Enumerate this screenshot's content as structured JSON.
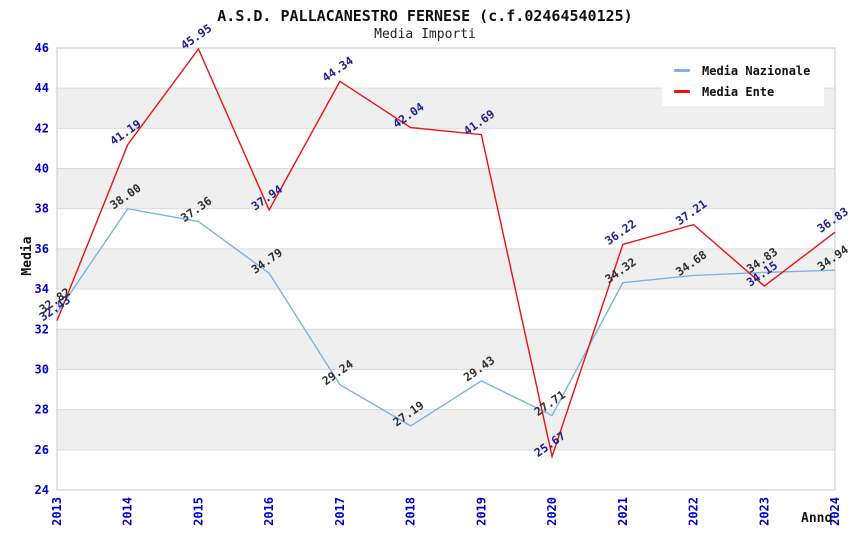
{
  "chart_data": {
    "type": "line",
    "title": "A.S.D. PALLACANESTRO FERNESE (c.f.02464540125)",
    "subtitle": "Media Importi",
    "xlabel": "Anno",
    "ylabel": "Media",
    "x": [
      "2013",
      "2014",
      "2015",
      "2016",
      "2017",
      "2018",
      "2019",
      "2020",
      "2021",
      "2022",
      "2023",
      "2024"
    ],
    "ylim": [
      24,
      46
    ],
    "ytick_step": 2,
    "grid": "horizontal",
    "bands": "alternating-gray",
    "legend_position": "top-right-inside",
    "series": [
      {
        "name": "Media Nazionale",
        "color": "#7EB2E2",
        "label_color": "#303030",
        "values": [
          32.82,
          38.0,
          37.36,
          34.79,
          29.24,
          27.19,
          29.43,
          27.71,
          34.32,
          34.68,
          34.83,
          34.94
        ]
      },
      {
        "name": "Media Ente",
        "color": "#EE1111",
        "label_color": "#1F1F8F",
        "values": [
          32.43,
          41.19,
          45.95,
          37.94,
          44.34,
          42.04,
          41.69,
          25.67,
          36.22,
          37.21,
          34.15,
          36.83
        ]
      }
    ],
    "style": {
      "tick_color": "#0000CD",
      "band_color": "#EFEFEF",
      "grid_color": "#DBDBDB",
      "border_color": "#C9C9C9"
    }
  }
}
